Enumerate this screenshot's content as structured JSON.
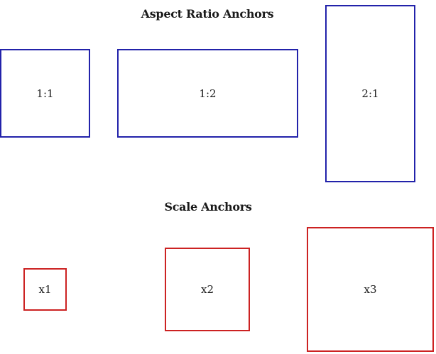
{
  "aspect_section": {
    "title": "Aspect Ratio Anchors",
    "color": "#2222aa",
    "boxes": [
      {
        "label": "1:1"
      },
      {
        "label": "1:2"
      },
      {
        "label": "2:1"
      }
    ]
  },
  "scale_section": {
    "title": "Scale Anchors",
    "color": "#cc2222",
    "boxes": [
      {
        "label": "x1"
      },
      {
        "label": "x2"
      },
      {
        "label": "x3"
      }
    ]
  }
}
